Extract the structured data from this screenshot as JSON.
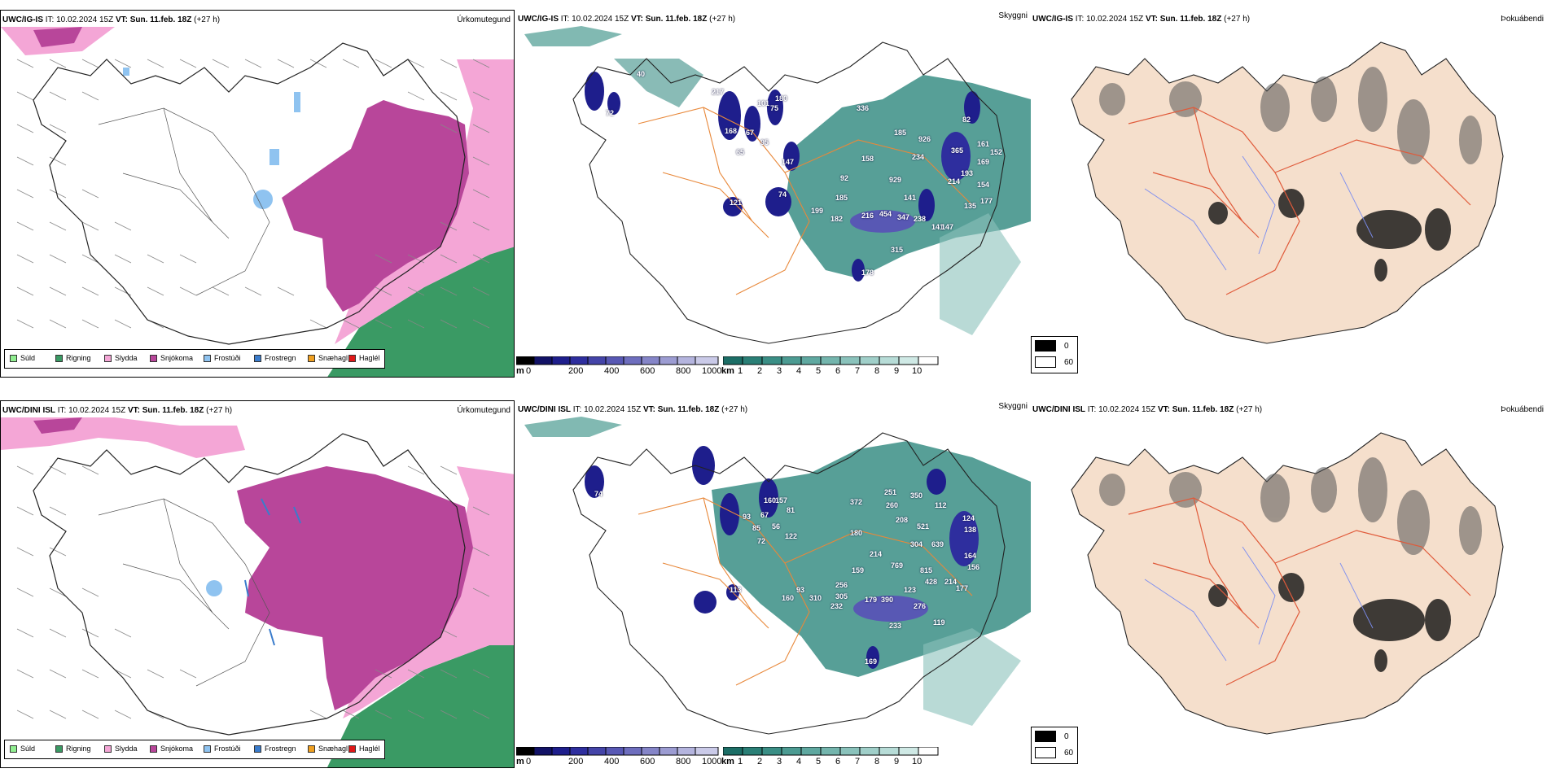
{
  "rows": [
    {
      "model": "UWC/IG-IS",
      "it_label": "IT:",
      "it_value": "10.02.2024 15Z",
      "vt_label": "VT:",
      "vt_value": "Sun. 11.feb. 18Z",
      "lead": "(+27 h)",
      "precip_labels": [
        "217",
        "336",
        "185",
        "82",
        "926",
        "365",
        "161",
        "152",
        "169",
        "234",
        "158",
        "193",
        "154",
        "92",
        "929",
        "214",
        "177",
        "141",
        "185",
        "135",
        "199",
        "182",
        "216",
        "454",
        "347",
        "238",
        "141",
        "147",
        "315",
        "178",
        "74",
        "121",
        "168",
        "67",
        "95",
        "65",
        "147",
        "40",
        "72",
        "101",
        "180",
        "75"
      ]
    },
    {
      "model": "UWC/DINI ISL",
      "it_label": "IT:",
      "it_value": "10.02.2024 15Z",
      "vt_label": "VT:",
      "vt_value": "Sun. 11.feb. 18Z",
      "lead": "(+27 h)",
      "precip_labels": [
        "251",
        "350",
        "260",
        "112",
        "372",
        "208",
        "521",
        "124",
        "138",
        "180",
        "304",
        "639",
        "164",
        "214",
        "769",
        "156",
        "159",
        "815",
        "428",
        "214",
        "177",
        "256",
        "123",
        "310",
        "305",
        "179",
        "390",
        "276",
        "232",
        "233",
        "119",
        "160",
        "93",
        "169",
        "113",
        "157",
        "93",
        "67",
        "56",
        "85",
        "122",
        "72",
        "160",
        "74",
        "81"
      ]
    }
  ],
  "panel_types": {
    "precip": "Úrkomutegund",
    "visibility": "Skyggni",
    "fog": "Þokuábendi"
  },
  "precip_legend": [
    {
      "label": "Súld",
      "color": "#90ee90"
    },
    {
      "label": "Rigning",
      "color": "#3a9a64"
    },
    {
      "label": "Slydda",
      "color": "#f4a6d6"
    },
    {
      "label": "Snjókoma",
      "color": "#b8469a"
    },
    {
      "label": "Frostúði",
      "color": "#8fc3f0"
    },
    {
      "label": "Frostregn",
      "color": "#3a7ccc"
    },
    {
      "label": "Snæhagl",
      "color": "#f0a020"
    },
    {
      "label": "Haglél",
      "color": "#e01818"
    }
  ],
  "ceiling_bar": {
    "unit": "m",
    "ticks": [
      "0",
      "200",
      "400",
      "600",
      "800",
      "1000"
    ],
    "colors": [
      "#000000",
      "#121266",
      "#1e1e8c",
      "#2e2e9e",
      "#4444a8",
      "#5858b4",
      "#6e6ebe",
      "#8585c8",
      "#9c9cd2",
      "#b4b4de",
      "#cacae8"
    ]
  },
  "vis_bar": {
    "unit": "km",
    "ticks": [
      "1",
      "2",
      "3",
      "4",
      "5",
      "6",
      "7",
      "8",
      "9",
      "10"
    ],
    "colors": [
      "#1c6e66",
      "#2a7f76",
      "#3a8e85",
      "#4c9b92",
      "#5fa8a0",
      "#74b5ad",
      "#8ac2bb",
      "#a0cfc9",
      "#b7dcd7",
      "#cfe9e5",
      "#ffffff"
    ]
  },
  "fog_legend": [
    {
      "label": "0",
      "color": "#000000"
    },
    {
      "label": "60",
      "color": "#ffffff"
    }
  ]
}
